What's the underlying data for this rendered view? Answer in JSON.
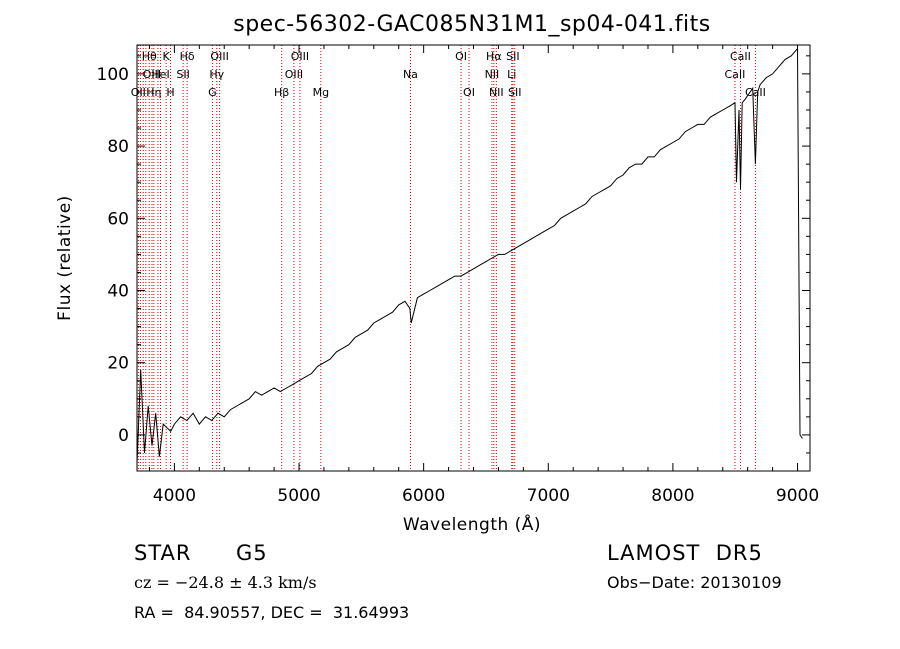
{
  "chart_data": {
    "type": "line",
    "title": "spec-56302-GAC085N31M1_sp04-041.fits",
    "xlabel": "Wavelength (Å)",
    "ylabel": "Flux (relative)",
    "xlim": [
      3700,
      9100
    ],
    "ylim": [
      -10,
      108
    ],
    "xticks": [
      4000,
      5000,
      6000,
      7000,
      8000,
      9000
    ],
    "yticks": [
      0,
      20,
      40,
      60,
      80,
      100
    ],
    "grid": false,
    "series": [
      {
        "x": [
          3700,
          3730,
          3760,
          3790,
          3820,
          3850,
          3880,
          3910,
          3940,
          3970,
          4000,
          4050,
          4100,
          4150,
          4200,
          4250,
          4300,
          4350,
          4400,
          4450,
          4500,
          4550,
          4600,
          4650,
          4700,
          4750,
          4800,
          4850,
          4900,
          4950,
          5000,
          5050,
          5100,
          5150,
          5200,
          5250,
          5300,
          5350,
          5400,
          5450,
          5500,
          5550,
          5600,
          5650,
          5700,
          5750,
          5800,
          5850,
          5890,
          5900,
          5950,
          6000,
          6050,
          6100,
          6150,
          6200,
          6250,
          6300,
          6350,
          6400,
          6450,
          6500,
          6550,
          6600,
          6650,
          6700,
          6750,
          6800,
          6850,
          6900,
          6950,
          7000,
          7050,
          7100,
          7150,
          7200,
          7250,
          7300,
          7350,
          7400,
          7450,
          7500,
          7550,
          7600,
          7650,
          7700,
          7750,
          7800,
          7850,
          7900,
          7950,
          8000,
          8050,
          8100,
          8150,
          8200,
          8250,
          8300,
          8350,
          8400,
          8450,
          8498,
          8510,
          8530,
          8542,
          8556,
          8580,
          8600,
          8640,
          8662,
          8680,
          8700,
          8750,
          8800,
          8850,
          8900,
          8950,
          9000,
          9020,
          9040
        ],
        "y": [
          -8,
          18,
          -5,
          8,
          -3,
          6,
          -6,
          3,
          2,
          1,
          3,
          5,
          4,
          6,
          3,
          5,
          4,
          6,
          5,
          7,
          8,
          9,
          10,
          12,
          11,
          12,
          13,
          12,
          13,
          14,
          15,
          16,
          17,
          19,
          20,
          21,
          23,
          24,
          25,
          27,
          28,
          29,
          31,
          32,
          33,
          34,
          36,
          37,
          35,
          31,
          38,
          39,
          40,
          41,
          42,
          43,
          44,
          44,
          45,
          46,
          47,
          48,
          49,
          50,
          50,
          51,
          52,
          53,
          54,
          55,
          56,
          57,
          58,
          60,
          61,
          62,
          63,
          64,
          66,
          67,
          68,
          69,
          71,
          72,
          74,
          75,
          75,
          77,
          77,
          79,
          80,
          81,
          82,
          84,
          85,
          86,
          86,
          88,
          89,
          90,
          91,
          92,
          70,
          90,
          68,
          92,
          93,
          94,
          96,
          75,
          95,
          97,
          99,
          100,
          102,
          104,
          105,
          107,
          0,
          -1
        ]
      }
    ],
    "lines": [
      {
        "x": 3711,
        "label": "OII",
        "row": 3
      },
      {
        "x": 3727,
        "label": "",
        "row": 0
      },
      {
        "x": 3750,
        "label": "",
        "row": 0
      },
      {
        "x": 3771,
        "label": "",
        "row": 0
      },
      {
        "x": 3798,
        "label": "Hθ",
        "row": 1
      },
      {
        "x": 3820,
        "label": "OIII",
        "row": 2
      },
      {
        "x": 3835,
        "label": "Hη",
        "row": 3
      },
      {
        "x": 3868,
        "label": "",
        "row": 0
      },
      {
        "x": 3889,
        "label": "HeI",
        "row": 2
      },
      {
        "x": 3934,
        "label": "K",
        "row": 1
      },
      {
        "x": 3969,
        "label": "H",
        "row": 3
      },
      {
        "x": 4070,
        "label": "SII",
        "row": 2
      },
      {
        "x": 4102,
        "label": "Hδ",
        "row": 1
      },
      {
        "x": 4305,
        "label": "G",
        "row": 3
      },
      {
        "x": 4340,
        "label": "Hγ",
        "row": 2
      },
      {
        "x": 4363,
        "label": "OIII",
        "row": 1
      },
      {
        "x": 4861,
        "label": "Hβ",
        "row": 3
      },
      {
        "x": 4959,
        "label": "OIII",
        "row": 2
      },
      {
        "x": 5007,
        "label": "OIII",
        "row": 1
      },
      {
        "x": 5175,
        "label": "Mg",
        "row": 3
      },
      {
        "x": 5894,
        "label": "Na",
        "row": 2
      },
      {
        "x": 6300,
        "label": "OI",
        "row": 1
      },
      {
        "x": 6364,
        "label": "OI",
        "row": 3
      },
      {
        "x": 6548,
        "label": "NII",
        "row": 2
      },
      {
        "x": 6563,
        "label": "Hα",
        "row": 1
      },
      {
        "x": 6583,
        "label": "NII",
        "row": 3
      },
      {
        "x": 6707,
        "label": "Li",
        "row": 2
      },
      {
        "x": 6716,
        "label": "SII",
        "row": 1
      },
      {
        "x": 6731,
        "label": "SII",
        "row": 3
      },
      {
        "x": 8498,
        "label": "CaII",
        "row": 2
      },
      {
        "x": 8542,
        "label": "CaII",
        "row": 1
      },
      {
        "x": 8662,
        "label": "CaII",
        "row": 3
      }
    ]
  },
  "info": {
    "object_class": "STAR",
    "subclass": "G5",
    "survey": "LAMOST  DR5",
    "redshift": "cz = −24.8 ± 4.3 km/s",
    "obs_date": "Obs−Date: 20130109",
    "coords": "RA =  84.90557, DEC =  31.64993"
  },
  "colors": {
    "spectrum": "#000000",
    "line_markers": "#cc0000",
    "axes": "#000000",
    "background": "#ffffff"
  }
}
